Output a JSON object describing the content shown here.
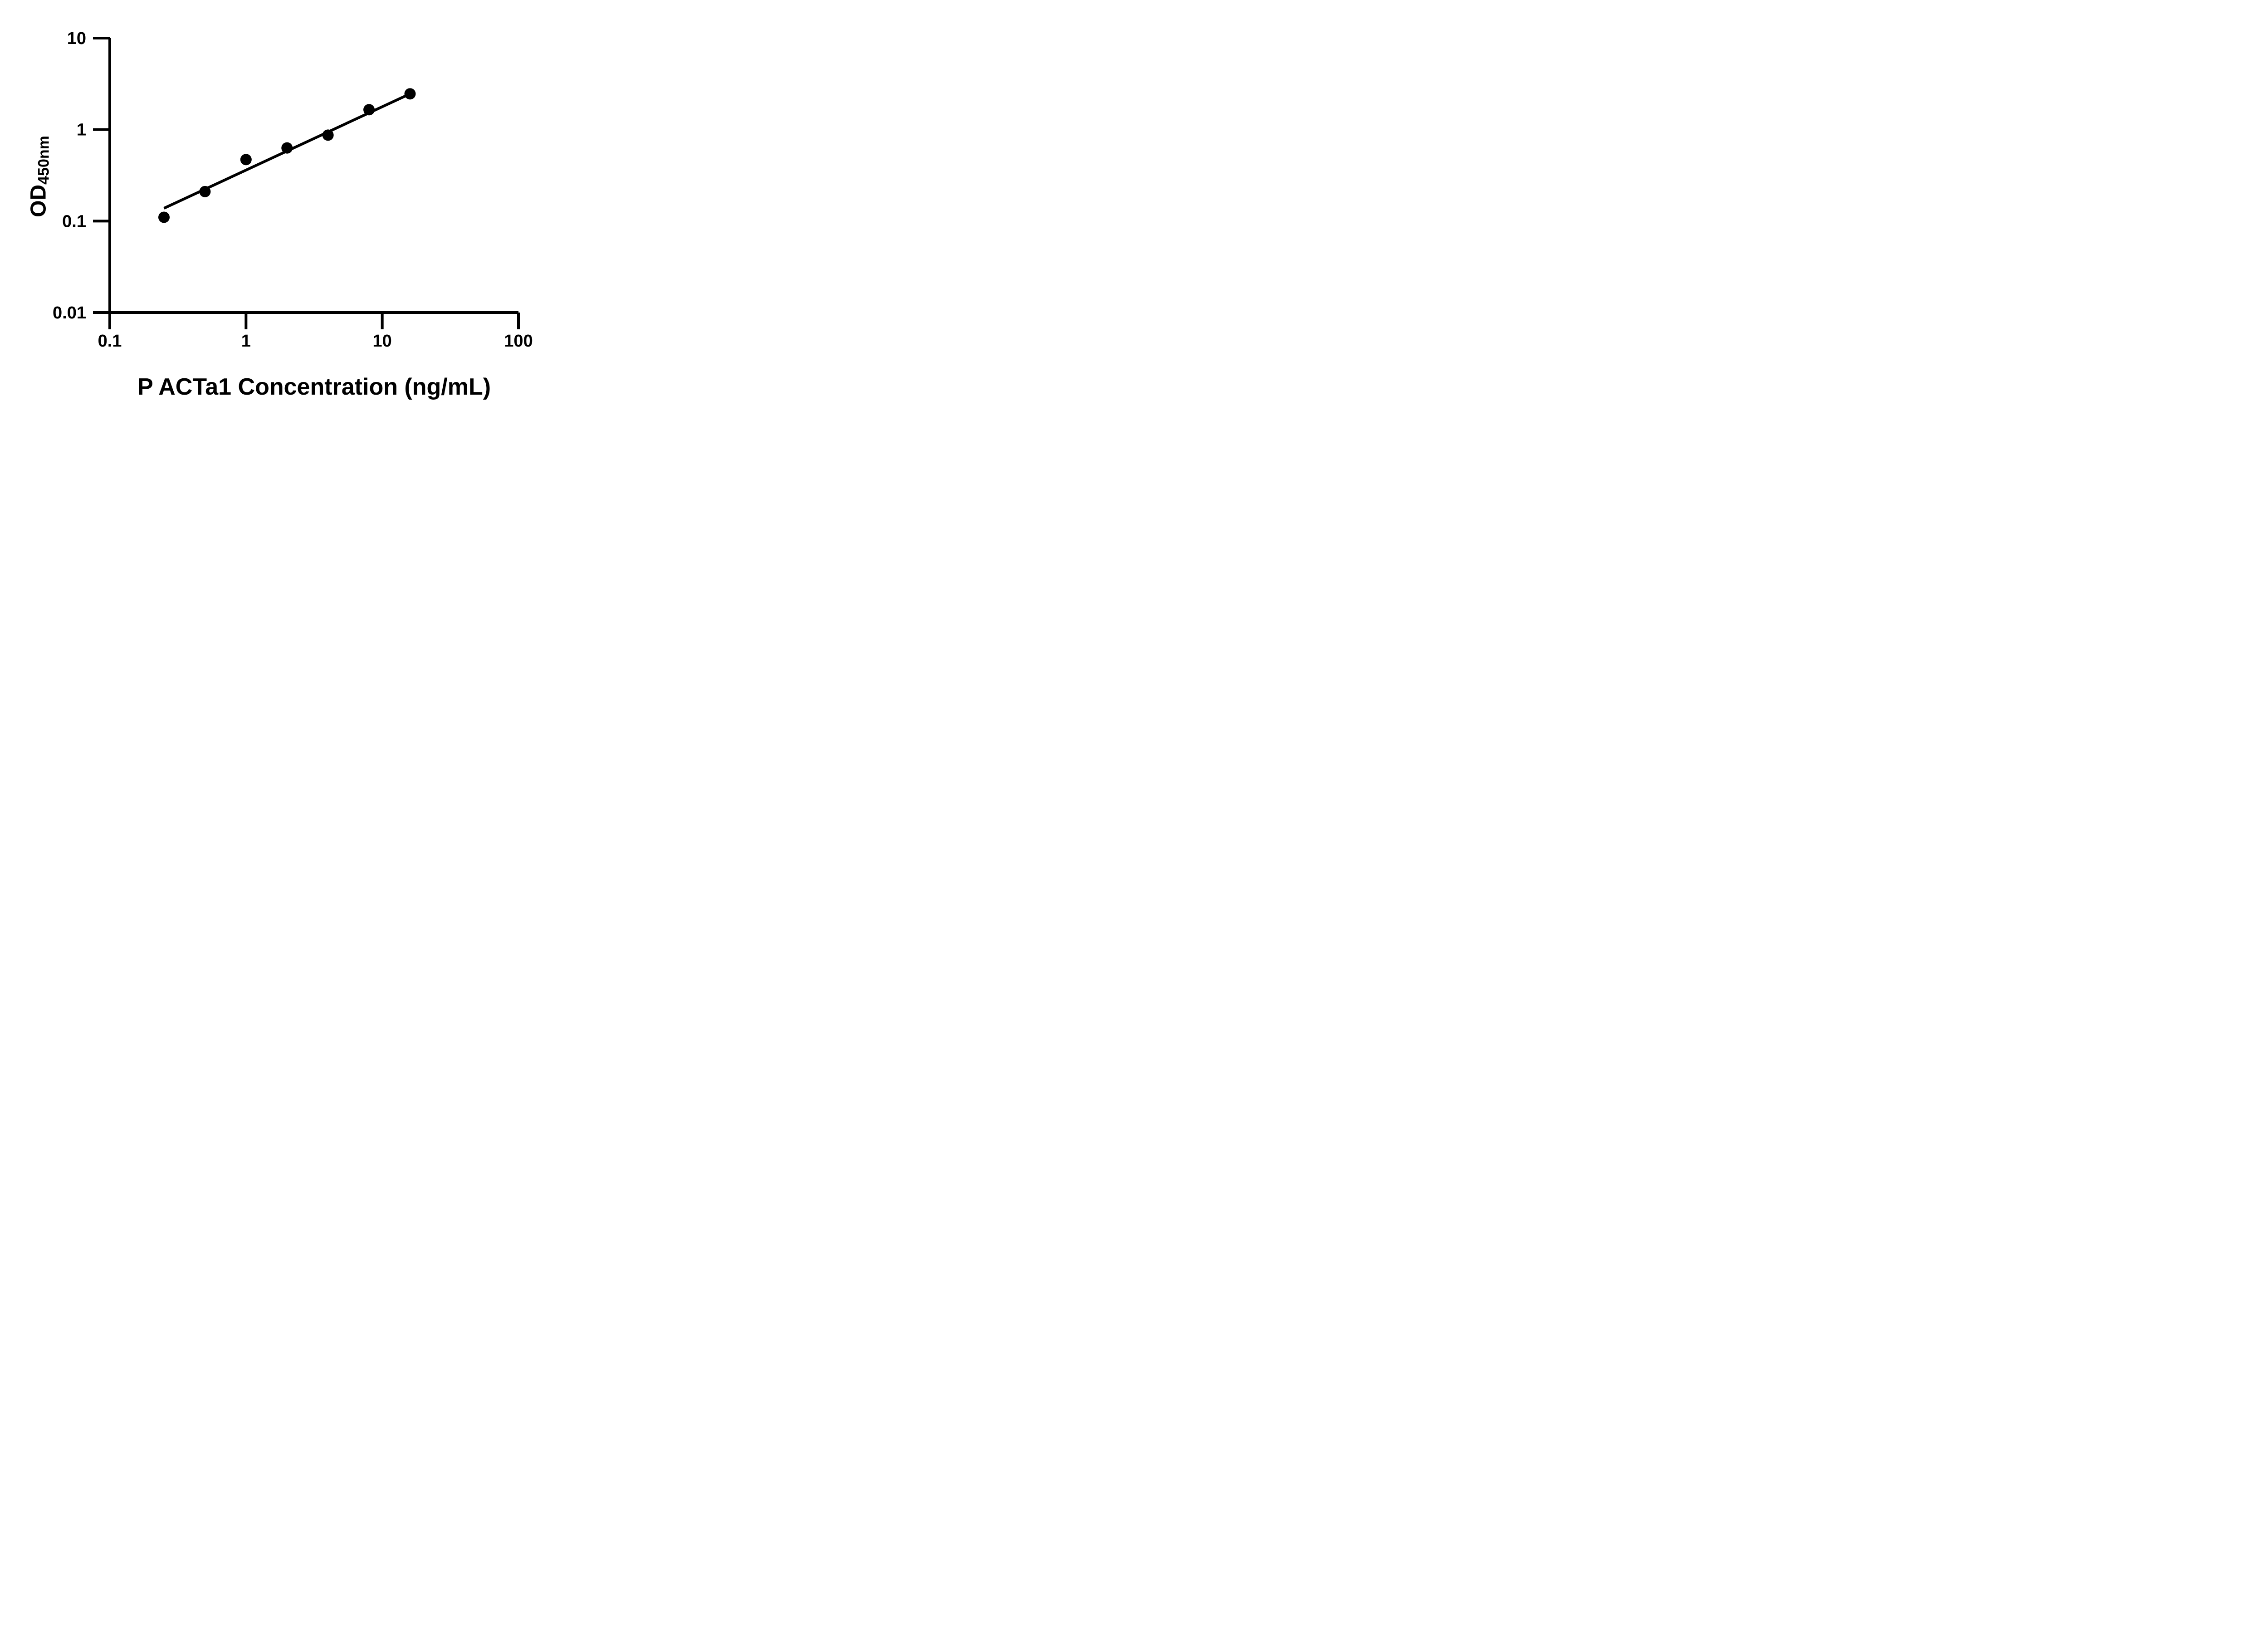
{
  "chart_data": {
    "type": "scatter",
    "title": "",
    "xlabel": "P ACTa1 Concentration (ng/mL)",
    "ylabel": "OD450nm",
    "ylabel_parts": {
      "base": "OD",
      "subscript": "450nm"
    },
    "x_scale": "log",
    "y_scale": "log",
    "xlim": [
      0.1,
      100
    ],
    "ylim": [
      0.01,
      10
    ],
    "x_ticks": [
      0.1,
      1,
      10,
      100
    ],
    "x_tick_labels": [
      "0.1",
      "1",
      "10",
      "100"
    ],
    "y_ticks": [
      10,
      1,
      0.1,
      0.01
    ],
    "y_tick_labels": [
      "10",
      "1",
      "0.1",
      "0.01"
    ],
    "grid": false,
    "legend": null,
    "background_color": "#ffffff",
    "point_color": "#000000",
    "line_color": "#000000",
    "axis_color": "#000000",
    "points": [
      {
        "x": 0.25,
        "y": 0.11
      },
      {
        "x": 0.5,
        "y": 0.21
      },
      {
        "x": 1,
        "y": 0.47
      },
      {
        "x": 2,
        "y": 0.63
      },
      {
        "x": 4,
        "y": 0.87
      },
      {
        "x": 8,
        "y": 1.65
      },
      {
        "x": 16,
        "y": 2.46
      }
    ],
    "fit_line": {
      "x1": 0.25,
      "y1": 0.138,
      "x2": 16,
      "y2": 2.46
    }
  }
}
